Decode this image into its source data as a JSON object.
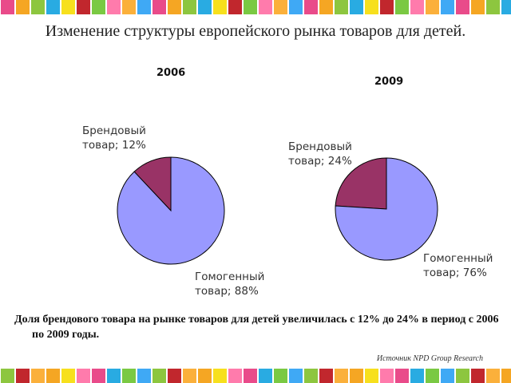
{
  "title": "Изменение структуры европейского рынка товаров для детей.",
  "caption": "Доля брендового товара на рынке товаров для детей увеличилась с 12% до 24% в период с 2006 по 2009 годы.",
  "source": "Источник NPD Group Research",
  "chart_data": [
    {
      "type": "pie",
      "title": "2006",
      "values": [
        12,
        88
      ],
      "value_labels": [
        "Брендовый товар; 12%",
        "Гомогенный товар; 88%"
      ],
      "colors": [
        "#993366",
        "#9999ff"
      ]
    },
    {
      "type": "pie",
      "title": "2009",
      "values": [
        24,
        76
      ],
      "value_labels": [
        "Брендовый товар; 24%",
        "Гомогенный товар; 76%"
      ],
      "colors": [
        "#993366",
        "#9999ff"
      ]
    }
  ]
}
